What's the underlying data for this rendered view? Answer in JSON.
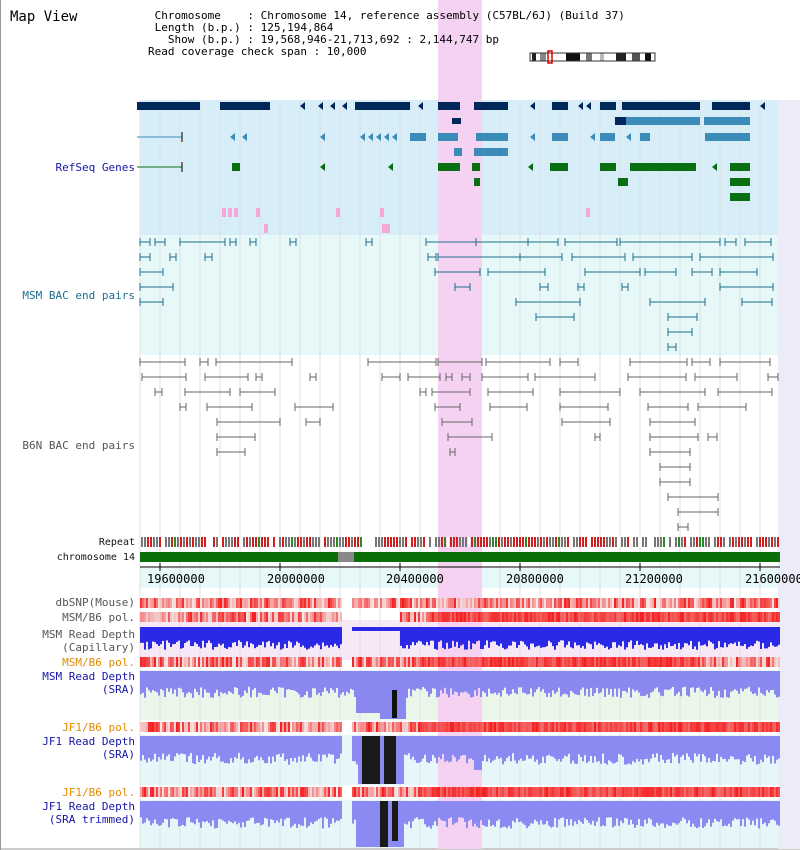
{
  "header": {
    "map_view_label": "Map View",
    "info_lines": [
      " Chromosome    : Chromosome 14, reference assembly (C57BL/6J) (Build 37)",
      " Length (b.p.) : 125,194,864",
      "   Show (b.p.) : 19,568,946-21,713,692 : 2,144,747 bp",
      "Read coverage check span : 10,000"
    ]
  },
  "tracks": {
    "refseq": "RefSeq Genes",
    "msm_bac": "MSM BAC end pairs",
    "b6n_bac": "B6N BAC end pairs",
    "repeat": "Repeat",
    "chromosome": "chromosome 14",
    "dbsnp": "dbSNP(Mouse)",
    "msm_b6_pol": "MSM/B6 pol.",
    "msm_depth_cap_1": "MSM Read Depth",
    "msm_depth_cap_2": "(Capillary)",
    "msm_b6_pol_2": "MSM/B6 pol.",
    "msm_depth_sra_1": "MSM Read Depth",
    "msm_depth_sra_2": "(SRA)",
    "jf1_b6_pol": "JF1/B6 pol.",
    "jf1_depth_sra_1": "JF1 Read Depth",
    "jf1_depth_sra_2": "(SRA)",
    "jf1_b6_pol_2": "JF1/B6 pol.",
    "jf1_depth_trim_1": "JF1 Read Depth",
    "jf1_depth_trim_2": "(SRA trimmed)"
  },
  "axis": {
    "ticks": [
      "19600000",
      "20000000",
      "20400000",
      "20800000",
      "21200000",
      "21600000"
    ]
  },
  "colors": {
    "highlight": "#f5d2f2",
    "refseq_bg": "#d7eef9",
    "msm_bg": "#e6f8f8",
    "gene_navy": "#00285a",
    "gene_blue": "#3a8bb8",
    "gene_green": "#0a6e12",
    "chrom_green": "#0a6e0a"
  }
}
